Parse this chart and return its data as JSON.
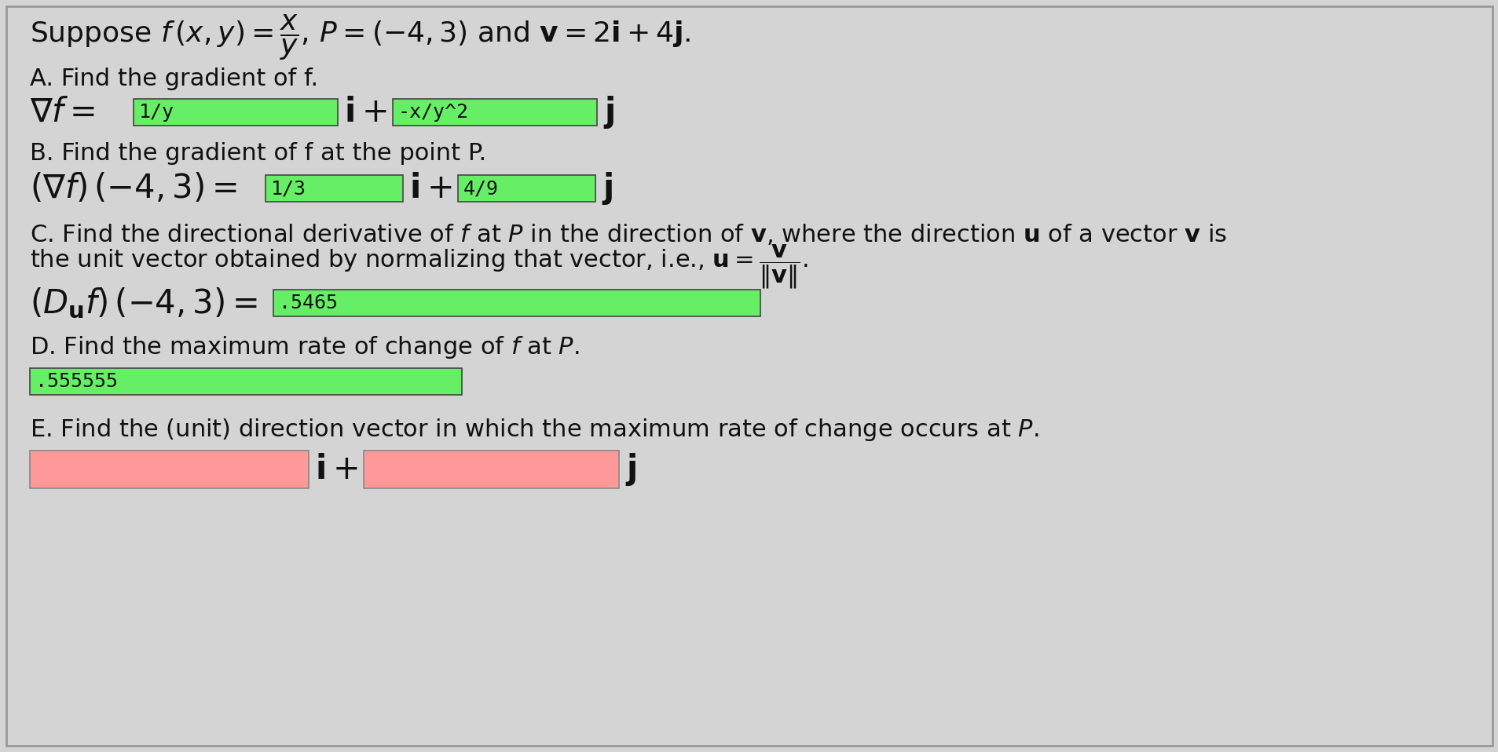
{
  "bg_color": "#d4d4d4",
  "border_color": "#999999",
  "text_color": "#111111",
  "green_box_color": "#66ee66",
  "pink_box_color": "#ff9999",
  "title_line": "Suppose $f\\,(x,y) = \\dfrac{x}{y},\\, P = (-4, 3)$ and $\\mathbf{v} = 2\\mathbf{i} + 4\\mathbf{j}.$",
  "section_A_label": "A. Find the gradient of f.",
  "section_A_box1": "1/y",
  "section_A_box2": "-x/y^2",
  "section_B_label": "B. Find the gradient of f at the point P.",
  "section_B_box1": "1/3",
  "section_B_box2": "4/9",
  "section_C_label1": "C. Find the directional derivative of $f$ at $P$ in the direction of $\\mathbf{v}$, where the direction $\\mathbf{u}$ of a vector $\\mathbf{v}$ is",
  "section_C_label2": "the unit vector obtained by normalizing that vector, i.e., $\\mathbf{u} = \\dfrac{\\mathbf{v}}{\\|\\mathbf{v}\\|}$.",
  "section_C_box1": ".5465",
  "section_D_label": "D. Find the maximum rate of change of $f$ at $P$.",
  "section_D_box1": ".555555",
  "section_E_label": "E. Find the (unit) direction vector in which the maximum rate of change occurs at $P$."
}
